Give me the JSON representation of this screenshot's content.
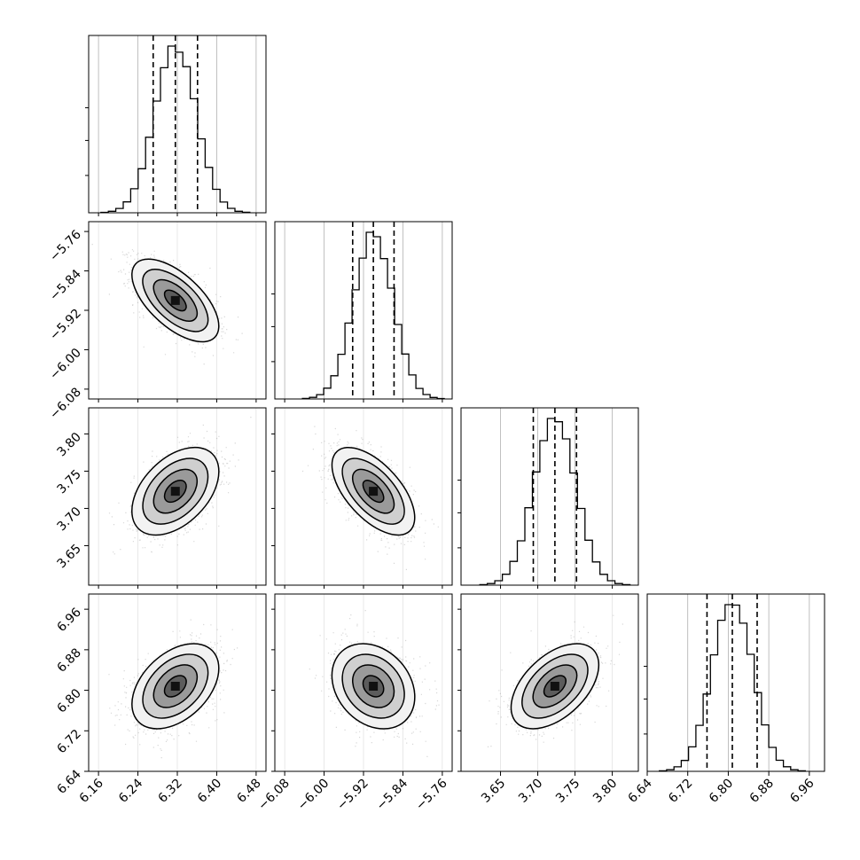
{
  "chart_data": {
    "type": "corner",
    "title": "",
    "parameters": [
      {
        "label": "",
        "range": [
          6.14,
          6.5
        ],
        "ticks": [
          6.16,
          6.24,
          6.32,
          6.4,
          6.48
        ],
        "tick_labels": [
          "6.16",
          "6.24",
          "6.32",
          "6.40",
          "6.48"
        ],
        "mean": 6.316,
        "std": 0.042,
        "quantiles": [
          6.271,
          6.316,
          6.361
        ]
      },
      {
        "label": "",
        "range": [
          -6.1,
          -5.74
        ],
        "ticks": [
          -6.08,
          -6.0,
          -5.92,
          -5.84,
          -5.76
        ],
        "tick_labels": [
          "−6.08",
          "−6.00",
          "−5.92",
          "−5.84",
          "−5.76"
        ],
        "mean": -5.9,
        "std": 0.04,
        "quantiles": [
          -5.942,
          -5.9,
          -5.858
        ]
      },
      {
        "label": "",
        "range": [
          3.597,
          3.835
        ],
        "ticks": [
          3.65,
          3.7,
          3.75,
          3.8
        ],
        "tick_labels": [
          "3.65",
          "3.70",
          "3.75",
          "3.80"
        ],
        "mean": 3.723,
        "std": 0.028,
        "quantiles": [
          3.694,
          3.723,
          3.752
        ]
      },
      {
        "label": "",
        "range": [
          6.64,
          6.99
        ],
        "ticks": [
          6.64,
          6.72,
          6.8,
          6.88,
          6.96
        ],
        "tick_labels": [
          "6.64",
          "6.72",
          "6.80",
          "6.88",
          "6.96"
        ],
        "mean": 6.808,
        "std": 0.04,
        "quantiles": [
          6.758,
          6.808,
          6.857
        ]
      }
    ],
    "correlations": [
      {
        "pair": [
          0,
          1
        ],
        "rho": -0.62
      },
      {
        "pair": [
          0,
          2
        ],
        "rho": 0.45
      },
      {
        "pair": [
          0,
          3
        ],
        "rho": 0.42
      },
      {
        "pair": [
          1,
          2
        ],
        "rho": -0.6
      },
      {
        "pair": [
          1,
          3
        ],
        "rho": -0.25
      },
      {
        "pair": [
          2,
          3
        ],
        "rho": 0.5
      }
    ],
    "histogram_bins": 20,
    "contour_levels_sigma": [
      0.5,
      1.0,
      1.5,
      2.0
    ],
    "grid": true,
    "colors": {
      "line": "#000000",
      "grid": "#b0b0b0",
      "points": "#8c8c8c"
    }
  }
}
